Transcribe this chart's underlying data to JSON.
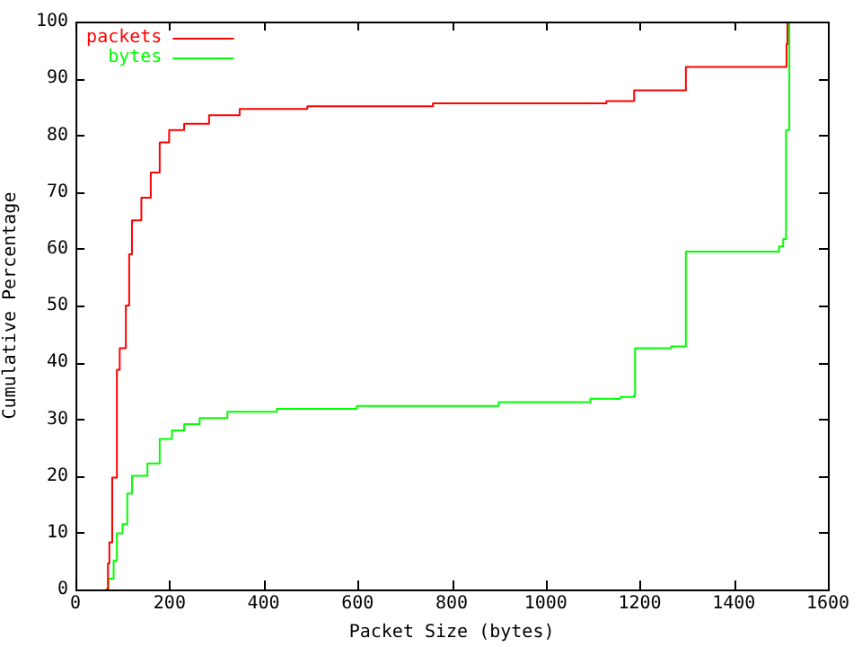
{
  "chart_data": {
    "type": "step",
    "xlabel": "Packet Size (bytes)",
    "ylabel": "Cumulative Percentage",
    "xlim": [
      0,
      1600
    ],
    "xticks": [
      0,
      200,
      400,
      600,
      800,
      1000,
      1200,
      1400,
      1600
    ],
    "ylim": [
      0,
      100
    ],
    "yticks": [
      0,
      10,
      20,
      30,
      40,
      50,
      60,
      70,
      80,
      90,
      100
    ],
    "grid": false,
    "legend": "top left",
    "series": [
      {
        "name": "packets",
        "color": "#ff0000",
        "x": [
          64,
          69,
          72,
          78,
          88,
          94,
          107,
          114,
          120,
          140,
          160,
          179,
          199,
          231,
          284,
          349,
          493,
          760,
          1129,
          1188,
          1298,
          1512,
          1514
        ],
        "values": [
          0,
          4.6,
          8.3,
          19.7,
          38.7,
          42.5,
          50,
          59,
          65,
          69,
          73.4,
          78.7,
          80.9,
          82,
          83.5,
          84.6,
          85.1,
          85.6,
          86,
          87.9,
          92,
          96,
          100
        ]
      },
      {
        "name": "bytes",
        "color": "#00ff00",
        "x": [
          64,
          70,
          81,
          88,
          100,
          110,
          120,
          153,
          179,
          205,
          231,
          264,
          323,
          428,
          598,
          900,
          1095,
          1159,
          1188,
          1190,
          1267,
          1298,
          1496,
          1505,
          1511,
          1518
        ],
        "values": [
          0,
          1.9,
          5.1,
          9.9,
          11.5,
          16.9,
          20,
          22.2,
          26.5,
          28,
          29.1,
          30.2,
          31.3,
          31.8,
          32.3,
          33,
          33.6,
          33.9,
          34.2,
          42.5,
          42.8,
          59.5,
          60.4,
          61.7,
          80.9,
          100
        ]
      }
    ]
  }
}
